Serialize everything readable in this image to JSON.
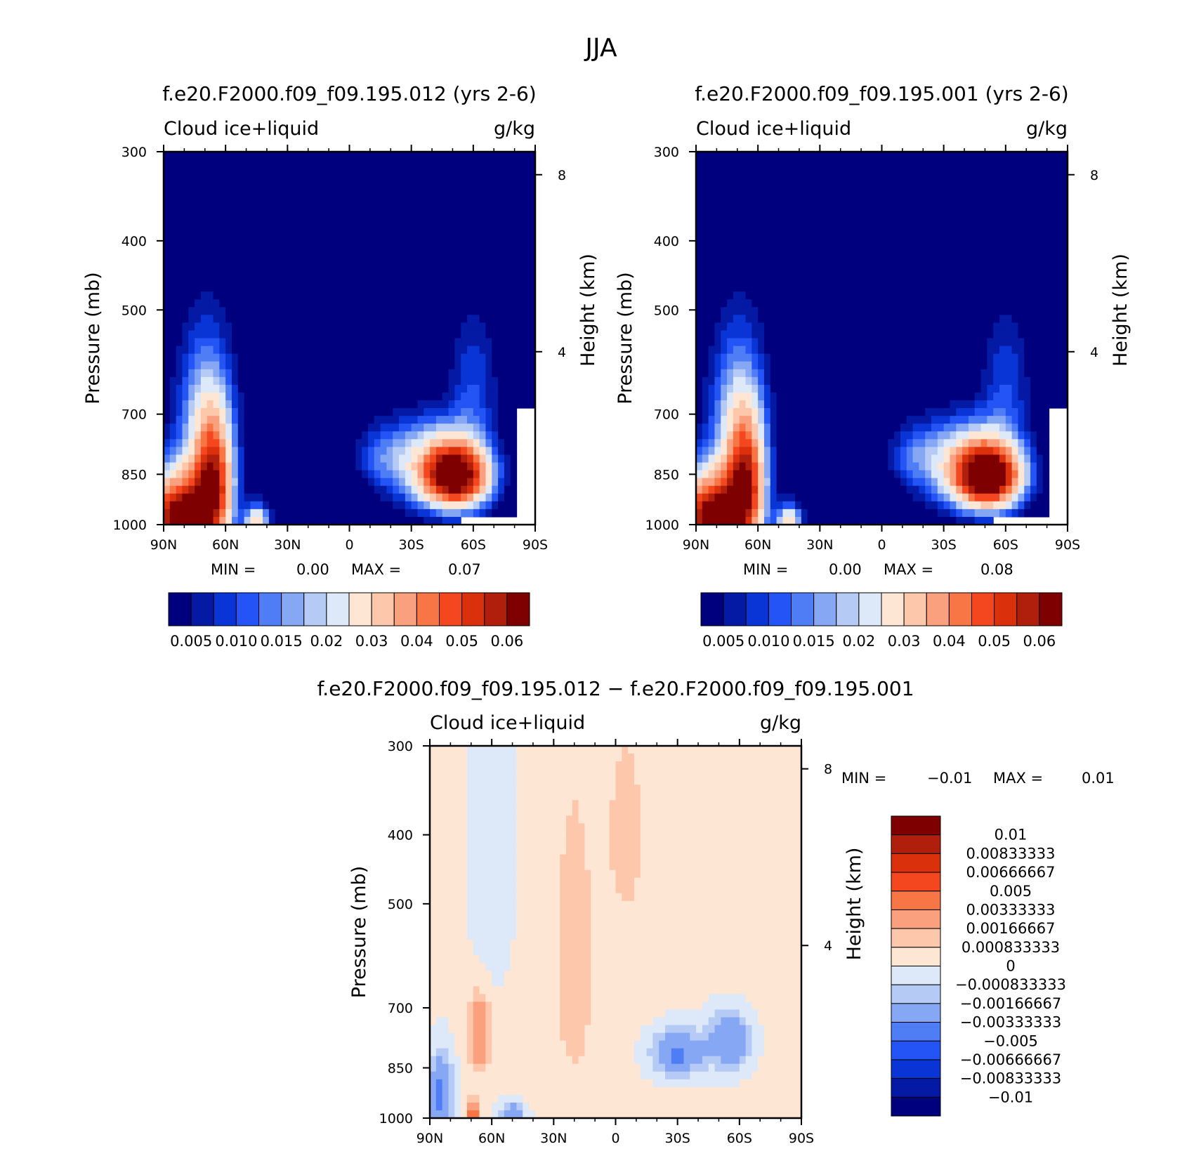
{
  "figure": {
    "title": "JJA"
  },
  "chart_data": [
    {
      "type": "heatmap",
      "title": "f.e20.F2000.f09_f09.195.012 (yrs 2-6)",
      "left_subtitle": "Cloud ice+liquid",
      "right_subtitle": "g/kg",
      "xlabel": "",
      "ylabel": "Pressure (mb)",
      "y2label": "Height (km)",
      "x_ticks": [
        "90N",
        "60N",
        "30N",
        "0",
        "30S",
        "60S",
        "90S"
      ],
      "y_ticks": [
        "300",
        "400",
        "500",
        "700",
        "850",
        "1000"
      ],
      "y2_ticks": [
        "8",
        "4"
      ],
      "xlim": [
        90,
        -90
      ],
      "ylim": [
        1000,
        300
      ],
      "y_scale": "log",
      "min_label": "MIN =",
      "min_value": "0.00",
      "max_label": "MAX =",
      "max_value": "0.07",
      "colorbar_labels": [
        "0.005",
        "0.010",
        "0.015",
        "0.02",
        "0.03",
        "0.04",
        "0.05",
        "0.06"
      ],
      "colors": [
        "#00007e",
        "#0419a4",
        "#0a35d6",
        "#2454f5",
        "#4f7df6",
        "#86a7f3",
        "#b5cbf6",
        "#dde9f8",
        "#fde6d3",
        "#fcc7aa",
        "#faa07e",
        "#f87545",
        "#f5471f",
        "#db300c",
        "#b01f0c",
        "#7e0000"
      ]
    },
    {
      "type": "heatmap",
      "title": "f.e20.F2000.f09_f09.195.001 (yrs 2-6)",
      "left_subtitle": "Cloud ice+liquid",
      "right_subtitle": "g/kg",
      "xlabel": "",
      "ylabel": "Pressure (mb)",
      "y2label": "Height (km)",
      "x_ticks": [
        "90N",
        "60N",
        "30N",
        "0",
        "30S",
        "60S",
        "90S"
      ],
      "y_ticks": [
        "300",
        "400",
        "500",
        "700",
        "850",
        "1000"
      ],
      "y2_ticks": [
        "8",
        "4"
      ],
      "xlim": [
        90,
        -90
      ],
      "ylim": [
        1000,
        300
      ],
      "y_scale": "log",
      "min_label": "MIN =",
      "min_value": "0.00",
      "max_label": "MAX =",
      "max_value": "0.08",
      "colorbar_labels": [
        "0.005",
        "0.010",
        "0.015",
        "0.02",
        "0.03",
        "0.04",
        "0.05",
        "0.06"
      ],
      "colors": [
        "#00007e",
        "#0419a4",
        "#0a35d6",
        "#2454f5",
        "#4f7df6",
        "#86a7f3",
        "#b5cbf6",
        "#dde9f8",
        "#fde6d3",
        "#fcc7aa",
        "#faa07e",
        "#f87545",
        "#f5471f",
        "#db300c",
        "#b01f0c",
        "#7e0000"
      ]
    },
    {
      "type": "heatmap",
      "title": "f.e20.F2000.f09_f09.195.012 − f.e20.F2000.f09_f09.195.001",
      "left_subtitle": "Cloud ice+liquid",
      "right_subtitle": "g/kg",
      "xlabel": "",
      "ylabel": "Pressure (mb)",
      "y2label": "Height (km)",
      "x_ticks": [
        "90N",
        "60N",
        "30N",
        "0",
        "30S",
        "60S",
        "90S"
      ],
      "y_ticks": [
        "300",
        "400",
        "500",
        "700",
        "850",
        "1000"
      ],
      "y2_ticks": [
        "8",
        "4"
      ],
      "xlim": [
        90,
        -90
      ],
      "ylim": [
        1000,
        300
      ],
      "y_scale": "log",
      "min_label": "MIN =",
      "min_value": "−0.01",
      "max_label": "MAX =",
      "max_value": "0.01",
      "colorbar_labels": [
        "0.01",
        "0.00833333",
        "0.00666667",
        "0.005",
        "0.00333333",
        "0.00166667",
        "0.000833333",
        "0",
        "−0.000833333",
        "−0.00166667",
        "−0.00333333",
        "−0.005",
        "−0.00666667",
        "−0.00833333",
        "−0.01"
      ],
      "colors": [
        "#7e0000",
        "#b01f0c",
        "#db300c",
        "#f5471f",
        "#f87545",
        "#faa07e",
        "#fcc7aa",
        "#fde6d3",
        "#dde9f8",
        "#b5cbf6",
        "#86a7f3",
        "#4f7df6",
        "#2454f5",
        "#0a35d6",
        "#0419a4",
        "#00007e"
      ]
    }
  ]
}
